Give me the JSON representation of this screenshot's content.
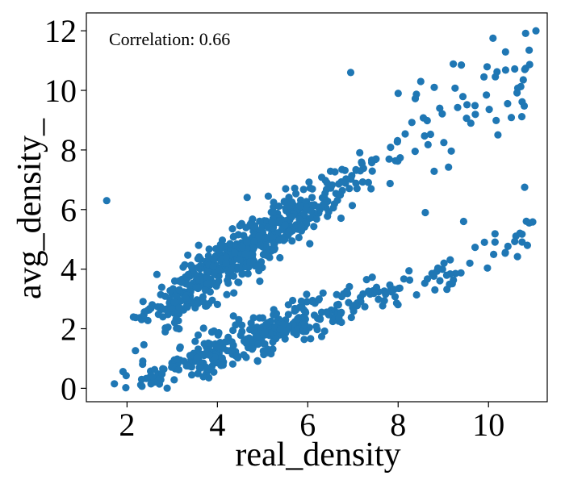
{
  "chart_data": {
    "type": "scatter",
    "title": "",
    "xlabel": "real_density",
    "ylabel": "avg_density_",
    "xlim": [
      1.1,
      11.3
    ],
    "ylim": [
      -0.45,
      12.6
    ],
    "xticks": [
      2,
      4,
      6,
      8,
      10
    ],
    "yticks": [
      0,
      2,
      4,
      6,
      8,
      10,
      12
    ],
    "grid": false,
    "legend": "none",
    "marker_color": "#1f77b4",
    "annotation": "Correlation: 0.66",
    "n_points": 1000,
    "upper_band": {
      "description": "avg ~ real, approx.",
      "x_range": [
        2.0,
        11.0
      ]
    },
    "lower_band": {
      "description": "avg ~ 0.55*(real-1.8), approx.",
      "x_range": [
        1.7,
        11.0
      ]
    },
    "highlighted_points": [
      {
        "x": 1.55,
        "y": 6.3
      },
      {
        "x": 1.72,
        "y": 0.15
      },
      {
        "x": 6.95,
        "y": 10.6
      },
      {
        "x": 10.1,
        "y": 11.75
      },
      {
        "x": 10.9,
        "y": 11.35
      },
      {
        "x": 11.05,
        "y": 12.0
      },
      {
        "x": 10.8,
        "y": 6.75
      },
      {
        "x": 10.9,
        "y": 5.55
      },
      {
        "x": 9.4,
        "y": 10.85
      },
      {
        "x": 9.9,
        "y": 10.45
      },
      {
        "x": 8.0,
        "y": 9.9
      },
      {
        "x": 8.5,
        "y": 10.3
      },
      {
        "x": 8.8,
        "y": 10.1
      },
      {
        "x": 9.45,
        "y": 5.6
      },
      {
        "x": 8.6,
        "y": 5.9
      }
    ]
  }
}
